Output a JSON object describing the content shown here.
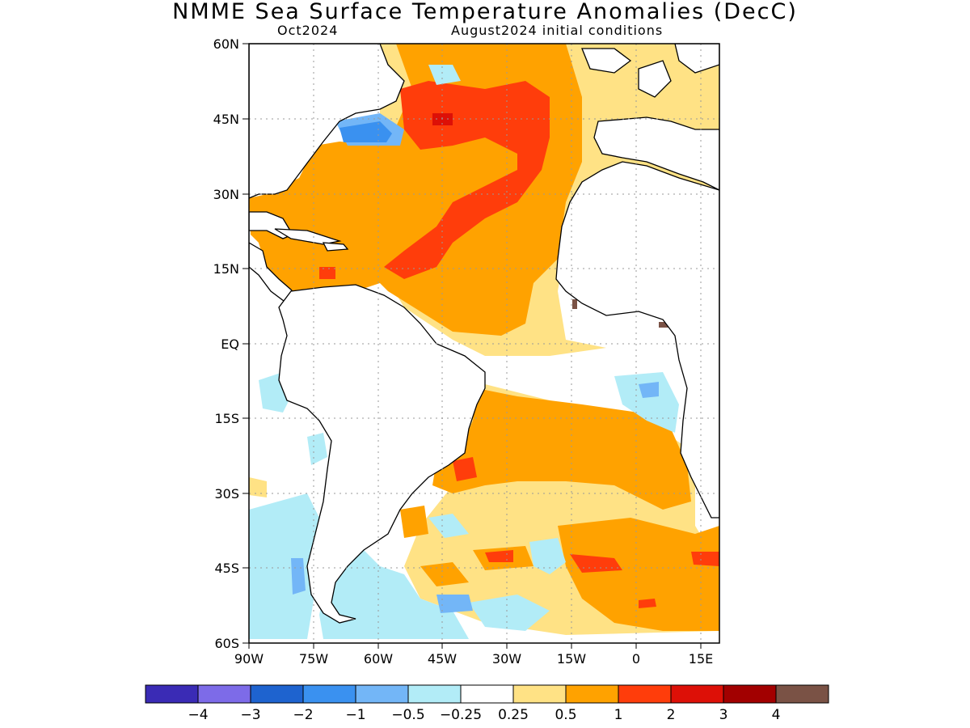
{
  "title": "NMME Sea Surface Temperature Anomalies (DecC)",
  "subtitle_left": "Oct2024",
  "subtitle_right": "August2024 initial conditions",
  "lat_ticks": [
    "60N",
    "45N",
    "30N",
    "15N",
    "EQ",
    "15S",
    "30S",
    "45S",
    "60S"
  ],
  "lon_ticks": [
    "90W",
    "75W",
    "60W",
    "45W",
    "30W",
    "15W",
    "0",
    "15E"
  ],
  "colorbar": {
    "colors": [
      "#3a2bb5",
      "#7d6be8",
      "#1e63cf",
      "#3a91f0",
      "#73b6f7",
      "#b2ecf7",
      "#ffffff",
      "#ffe285",
      "#ffa200",
      "#ff3d0b",
      "#dd1007",
      "#a20000",
      "#7a5245"
    ],
    "labels": [
      "−4",
      "−3",
      "−2",
      "−1",
      "−0.5",
      "−0.25",
      "0.25",
      "0.5",
      "1",
      "2",
      "3",
      "4"
    ]
  },
  "chart_data": {
    "type": "heatmap",
    "title": "NMME Sea Surface Temperature Anomalies (DecC)",
    "lat_range": [
      -60,
      60
    ],
    "lon_range": [
      -90,
      19
    ],
    "contour_levels": [
      -4,
      -3,
      -2,
      -1,
      -0.5,
      -0.25,
      0.25,
      0.5,
      1,
      2,
      3,
      4
    ],
    "units": "DecC",
    "grid": true
  }
}
